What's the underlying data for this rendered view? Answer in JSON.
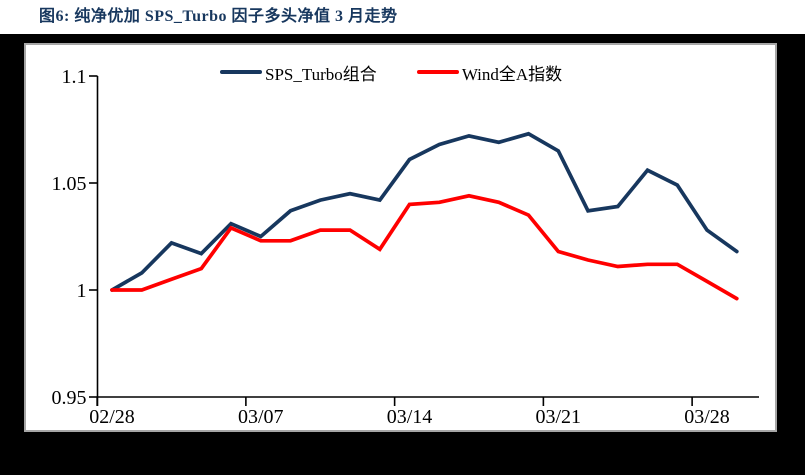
{
  "page": {
    "title": "图6:  纯净优加 SPS_Turbo 因子多头净值 3 月走势"
  },
  "colors": {
    "title": "#17375E",
    "page_bg": "#000000",
    "panel_bg": "#FFFFFF",
    "panel_border": "#A6A6A6",
    "axis": "#000000",
    "series1": "#17375E",
    "series2": "#FF0000"
  },
  "chart_data": {
    "type": "line",
    "title": "纯净优加 SPS_Turbo 因子多头净值 3 月走势",
    "xlabel": "",
    "ylabel": "",
    "grid": false,
    "legend_position": "top",
    "ylim": [
      0.95,
      1.1
    ],
    "yticks": [
      "0.95",
      "1",
      "1.05",
      "1.1"
    ],
    "xticks": [
      "02/28",
      "03/07",
      "03/14",
      "03/21",
      "03/28"
    ],
    "x": [
      "02/28",
      "03/01",
      "03/02",
      "03/03",
      "03/04",
      "03/07",
      "03/08",
      "03/09",
      "03/10",
      "03/11",
      "03/14",
      "03/15",
      "03/16",
      "03/17",
      "03/18",
      "03/21",
      "03/22",
      "03/23",
      "03/24",
      "03/25",
      "03/28",
      "03/29"
    ],
    "series": [
      {
        "name": "SPS_Turbo组合",
        "color": "#17375E",
        "values": [
          1.0,
          1.008,
          1.022,
          1.017,
          1.031,
          1.025,
          1.037,
          1.042,
          1.045,
          1.042,
          1.061,
          1.068,
          1.072,
          1.069,
          1.073,
          1.065,
          1.037,
          1.039,
          1.056,
          1.049,
          1.028,
          1.018
        ]
      },
      {
        "name": "Wind全A指数",
        "color": "#FF0000",
        "values": [
          1.0,
          1.0,
          1.005,
          1.01,
          1.029,
          1.023,
          1.023,
          1.028,
          1.028,
          1.019,
          1.04,
          1.041,
          1.044,
          1.041,
          1.035,
          1.018,
          1.014,
          1.011,
          1.012,
          1.012,
          1.004,
          0.996
        ]
      }
    ]
  }
}
